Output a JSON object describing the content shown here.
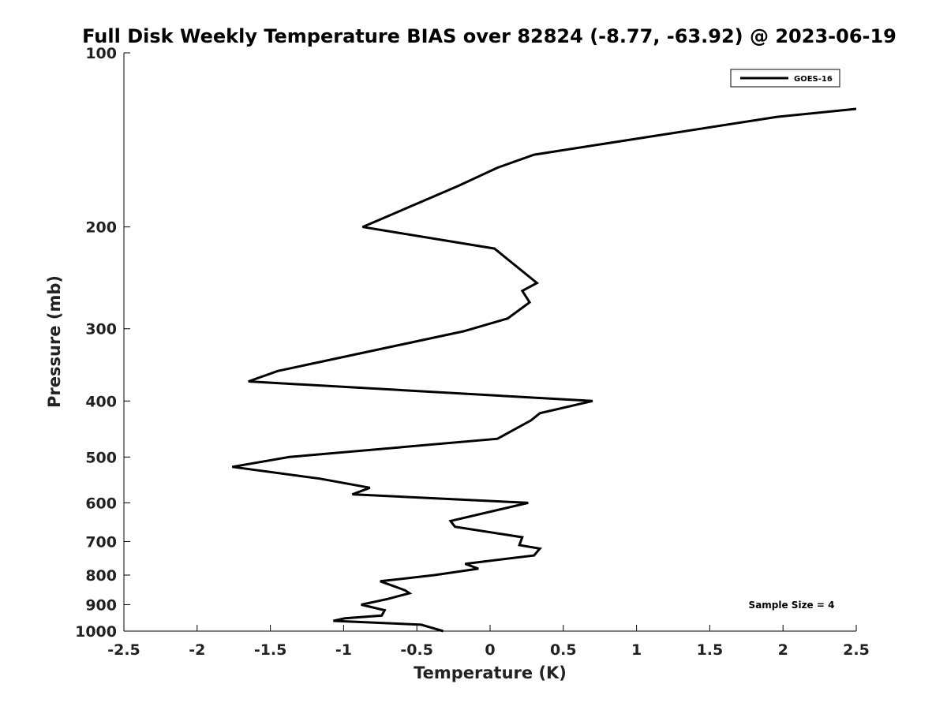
{
  "chart_data": {
    "type": "line",
    "title": "Full Disk Weekly Temperature BIAS over 82824 (-8.77, -63.92) @ 2023-06-19",
    "xlabel": "Temperature (K)",
    "ylabel": "Pressure (mb)",
    "xlim": [
      -2.5,
      2.5
    ],
    "ylim": [
      100,
      1000
    ],
    "y_scale": "log",
    "y_inverted": true,
    "grid": false,
    "legend_position": "top-right",
    "x_ticks": [
      "-2.5",
      "-2",
      "-1.5",
      "-1",
      "-0.5",
      "0",
      "0.5",
      "1",
      "1.5",
      "2",
      "2.5"
    ],
    "x_tick_values": [
      -2.5,
      -2,
      -1.5,
      -1,
      -0.5,
      0,
      0.5,
      1,
      1.5,
      2,
      2.5
    ],
    "y_ticks": [
      "100",
      "200",
      "300",
      "400",
      "500",
      "600",
      "700",
      "800",
      "900",
      "1000"
    ],
    "y_tick_values": [
      100,
      200,
      300,
      400,
      500,
      600,
      700,
      800,
      900,
      1000
    ],
    "annotation": "Sample Size = 4",
    "series": [
      {
        "name": "GOES-16",
        "color": "#000000",
        "points": [
          [
            2.5,
            125
          ],
          [
            1.96,
            129
          ],
          [
            0.3,
            150
          ],
          [
            0.05,
            158
          ],
          [
            -0.22,
            170
          ],
          [
            -0.87,
            200
          ],
          [
            0.03,
            218
          ],
          [
            0.32,
            250
          ],
          [
            0.22,
            258
          ],
          [
            0.27,
            270
          ],
          [
            0.12,
            288
          ],
          [
            -0.18,
            303
          ],
          [
            -1.45,
            355
          ],
          [
            -1.65,
            370
          ],
          [
            0.7,
            400
          ],
          [
            0.34,
            420
          ],
          [
            0.28,
            432
          ],
          [
            0.05,
            465
          ],
          [
            -1.37,
            500
          ],
          [
            -1.76,
            520
          ],
          [
            -1.16,
            545
          ],
          [
            -0.82,
            565
          ],
          [
            -0.94,
            580
          ],
          [
            0.26,
            600
          ],
          [
            -0.27,
            645
          ],
          [
            -0.24,
            660
          ],
          [
            0.22,
            688
          ],
          [
            0.2,
            710
          ],
          [
            0.34,
            720
          ],
          [
            0.3,
            740
          ],
          [
            -0.17,
            765
          ],
          [
            -0.08,
            780
          ],
          [
            -0.38,
            800
          ],
          [
            -0.75,
            820
          ],
          [
            -0.58,
            850
          ],
          [
            -0.55,
            860
          ],
          [
            -0.7,
            880
          ],
          [
            -0.88,
            900
          ],
          [
            -0.72,
            920
          ],
          [
            -0.74,
            940
          ],
          [
            -0.99,
            950
          ],
          [
            -1.07,
            960
          ],
          [
            -0.47,
            975
          ],
          [
            -0.32,
            1000
          ]
        ]
      }
    ]
  }
}
